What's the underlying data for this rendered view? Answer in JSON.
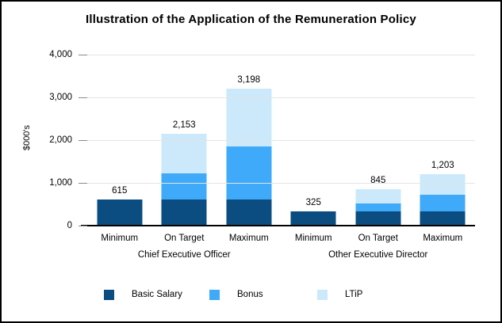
{
  "chart_data": {
    "type": "bar",
    "stacked": true,
    "title": "Illustration of the Application of the Remuneration Policy",
    "ylabel": "$000's",
    "ylim": [
      0,
      4000
    ],
    "yticks": [
      {
        "value": 0,
        "label": "0"
      },
      {
        "value": 1000,
        "label": "1,000"
      },
      {
        "value": 2000,
        "label": "2,000"
      },
      {
        "value": 3000,
        "label": "3,000"
      },
      {
        "value": 4000,
        "label": "4,000"
      }
    ],
    "grid": "horizontal",
    "legend_position": "bottom",
    "categories": [
      "Minimum",
      "On Target",
      "Maximum",
      "Minimum",
      "On Target",
      "Maximum"
    ],
    "groups": [
      {
        "label": "Chief Executive Officer",
        "category_indexes": [
          0,
          1,
          2
        ]
      },
      {
        "label": "Other Executive Director",
        "category_indexes": [
          3,
          4,
          5
        ]
      }
    ],
    "series": [
      {
        "name": "Basic Salary",
        "color": "#0B4D80",
        "values": [
          615,
          615,
          615,
          325,
          325,
          325
        ]
      },
      {
        "name": "Bonus",
        "color": "#3FA9FA",
        "values": [
          0,
          615,
          1230,
          0,
          195,
          390
        ]
      },
      {
        "name": "LTiP",
        "color": "#CBE9FB",
        "values": [
          0,
          923,
          1353,
          0,
          325,
          488
        ]
      }
    ],
    "totals": [
      615,
      2153,
      3198,
      325,
      845,
      1203
    ],
    "total_labels": [
      "615",
      "2,153",
      "3,198",
      "325",
      "845",
      "1,203"
    ],
    "colors": {
      "gridline": "#e4e4e4",
      "tick": "#8a8a8a",
      "axis": "#000000",
      "frame_border": "#000000",
      "text": "#000000"
    }
  }
}
